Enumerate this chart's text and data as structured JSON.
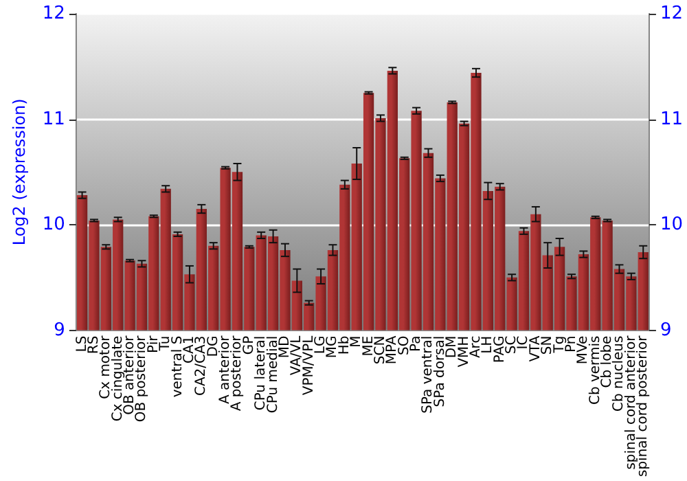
{
  "chart_data": {
    "type": "bar",
    "ylabel": "Log2 (expression)",
    "categories": [
      "LS",
      "RS",
      "Cx motor",
      "Cx cingulate",
      "OB anterior",
      "OB posterior",
      "Pir",
      "Tu",
      "ventral S",
      "CA1",
      "CA2/CA3",
      "DG",
      "A anterior",
      "A posterior",
      "GP",
      "CPu lateral",
      "CPu medial",
      "MD",
      "VA/VL",
      "VPM/VPL",
      "LG",
      "MG",
      "Hb",
      "M",
      "ME",
      "SCN",
      "MPA",
      "SO",
      "Pa",
      "SPa ventral",
      "SPa dorsal",
      "DM",
      "VMH",
      "Arc",
      "LH",
      "PAG",
      "SC",
      "IC",
      "VTA",
      "SN",
      "Tg",
      "Pn",
      "MVe",
      "Cb vermis",
      "Cb lobe",
      "Cb nucleus",
      "spinal cord anterior",
      "spinal cord posterior"
    ],
    "values": [
      10.28,
      10.04,
      9.79,
      10.05,
      9.66,
      9.63,
      10.08,
      10.34,
      9.91,
      9.53,
      10.15,
      9.8,
      10.54,
      10.5,
      9.79,
      9.9,
      9.89,
      9.76,
      9.47,
      9.26,
      9.51,
      9.76,
      10.38,
      10.58,
      11.25,
      11.01,
      11.46,
      10.63,
      11.08,
      10.68,
      10.44,
      11.16,
      10.96,
      11.44,
      10.32,
      10.36,
      9.5,
      9.94,
      10.1,
      9.71,
      9.79,
      9.51,
      9.72,
      10.07,
      10.04,
      9.58,
      9.51,
      9.74
    ],
    "errors": [
      0.03,
      0.01,
      0.02,
      0.02,
      0.01,
      0.03,
      0.01,
      0.03,
      0.02,
      0.08,
      0.04,
      0.03,
      0.01,
      0.08,
      0.01,
      0.03,
      0.06,
      0.06,
      0.11,
      0.02,
      0.07,
      0.05,
      0.04,
      0.15,
      0.01,
      0.03,
      0.03,
      0.01,
      0.03,
      0.04,
      0.03,
      0.01,
      0.02,
      0.04,
      0.08,
      0.03,
      0.03,
      0.03,
      0.07,
      0.12,
      0.08,
      0.02,
      0.03,
      0.01,
      0.01,
      0.04,
      0.03,
      0.06
    ],
    "color": "#b03535",
    "ylim": [
      9,
      12
    ],
    "yticks": [
      9,
      10,
      11,
      12
    ],
    "y2lim": [
      9,
      12
    ],
    "y2ticks": [
      9,
      10,
      11,
      12
    ],
    "grid": "y"
  }
}
